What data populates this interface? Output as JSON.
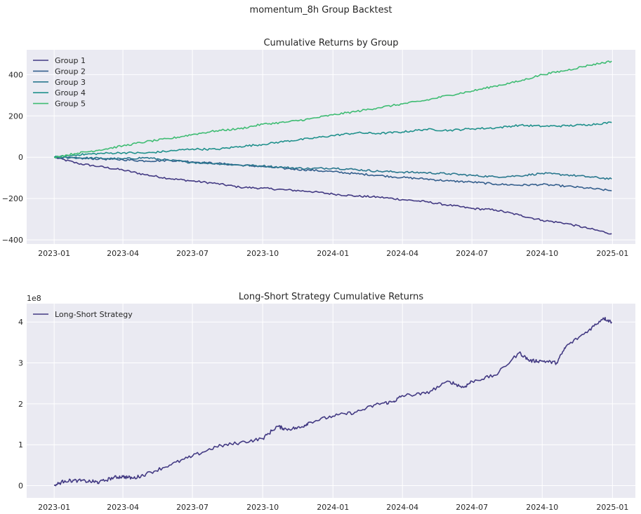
{
  "figure": {
    "suptitle": "momentum_8h Group Backtest",
    "style": {
      "face": "#eaeaf2",
      "grid": "#ffffff"
    }
  },
  "chart_data": [
    {
      "type": "line",
      "title": "Cumulative Returns by Group",
      "xlabel": "",
      "ylabel": "",
      "x_ticks": [
        "2023-01",
        "2023-04",
        "2023-07",
        "2023-10",
        "2024-01",
        "2024-04",
        "2024-07",
        "2024-10",
        "2025-01"
      ],
      "y_ticks": [
        "−400",
        "−200",
        "0",
        "200",
        "400"
      ],
      "y_tick_values": [
        -400,
        -200,
        0,
        200,
        400
      ],
      "xlim": [
        "2022-11-26",
        "2025-01-31"
      ],
      "ylim": [
        -420,
        520
      ],
      "grid": true,
      "legend": "top-left",
      "series": [
        {
          "name": "Group 1",
          "color": "#433a83",
          "x": [
            "2023-01-01",
            "2023-02-01",
            "2023-03-01",
            "2023-04-01",
            "2023-05-01",
            "2023-06-01",
            "2023-07-01",
            "2023-08-01",
            "2023-09-01",
            "2023-10-01",
            "2023-11-01",
            "2023-12-01",
            "2024-01-01",
            "2024-02-01",
            "2024-03-01",
            "2024-04-01",
            "2024-05-01",
            "2024-06-01",
            "2024-07-01",
            "2024-08-01",
            "2024-09-01",
            "2024-10-01",
            "2024-11-01",
            "2024-12-01",
            "2024-12-31"
          ],
          "y": [
            0,
            -30,
            -45,
            -62,
            -85,
            -103,
            -115,
            -127,
            -145,
            -150,
            -158,
            -165,
            -178,
            -188,
            -193,
            -205,
            -215,
            -232,
            -248,
            -255,
            -280,
            -305,
            -320,
            -345,
            -370
          ]
        },
        {
          "name": "Group 2",
          "color": "#355f8d",
          "x": [
            "2023-01-01",
            "2023-02-01",
            "2023-03-01",
            "2023-04-01",
            "2023-05-01",
            "2023-06-01",
            "2023-07-01",
            "2023-08-01",
            "2023-09-01",
            "2023-10-01",
            "2023-11-01",
            "2023-12-01",
            "2024-01-01",
            "2024-02-01",
            "2024-03-01",
            "2024-04-01",
            "2024-05-01",
            "2024-06-01",
            "2024-07-01",
            "2024-08-01",
            "2024-09-01",
            "2024-10-01",
            "2024-11-01",
            "2024-12-01",
            "2024-12-31"
          ],
          "y": [
            0,
            -5,
            -8,
            -12,
            -18,
            -15,
            -22,
            -30,
            -38,
            -45,
            -55,
            -62,
            -70,
            -80,
            -88,
            -98,
            -105,
            -115,
            -120,
            -130,
            -135,
            -132,
            -140,
            -150,
            -162
          ]
        },
        {
          "name": "Group 3",
          "color": "#2a788e",
          "x": [
            "2023-01-01",
            "2023-02-01",
            "2023-03-01",
            "2023-04-01",
            "2023-05-01",
            "2023-06-01",
            "2023-07-01",
            "2023-08-01",
            "2023-09-01",
            "2023-10-01",
            "2023-11-01",
            "2023-12-01",
            "2024-01-01",
            "2024-02-01",
            "2024-03-01",
            "2024-04-01",
            "2024-05-01",
            "2024-06-01",
            "2024-07-01",
            "2024-08-01",
            "2024-09-01",
            "2024-10-01",
            "2024-11-01",
            "2024-12-01",
            "2024-12-31"
          ],
          "y": [
            0,
            -3,
            -5,
            -8,
            -2,
            -15,
            -25,
            -30,
            -38,
            -42,
            -50,
            -55,
            -52,
            -60,
            -68,
            -72,
            -75,
            -80,
            -88,
            -95,
            -90,
            -78,
            -85,
            -95,
            -105
          ]
        },
        {
          "name": "Group 4",
          "color": "#21918c",
          "x": [
            "2023-01-01",
            "2023-02-01",
            "2023-03-01",
            "2023-04-01",
            "2023-05-01",
            "2023-06-01",
            "2023-07-01",
            "2023-08-01",
            "2023-09-01",
            "2023-10-01",
            "2023-11-01",
            "2023-12-01",
            "2024-01-01",
            "2024-02-01",
            "2024-03-01",
            "2024-04-01",
            "2024-05-01",
            "2024-06-01",
            "2024-07-01",
            "2024-08-01",
            "2024-09-01",
            "2024-10-01",
            "2024-11-01",
            "2024-12-01",
            "2024-12-31"
          ],
          "y": [
            0,
            12,
            18,
            22,
            20,
            30,
            40,
            38,
            52,
            62,
            78,
            90,
            105,
            118,
            115,
            122,
            135,
            130,
            138,
            142,
            155,
            150,
            152,
            158,
            168
          ]
        },
        {
          "name": "Group 5",
          "color": "#3fbc73",
          "x": [
            "2023-01-01",
            "2023-02-01",
            "2023-03-01",
            "2023-04-01",
            "2023-05-01",
            "2023-06-01",
            "2023-07-01",
            "2023-08-01",
            "2023-09-01",
            "2023-10-01",
            "2023-11-01",
            "2023-12-01",
            "2024-01-01",
            "2024-02-01",
            "2024-03-01",
            "2024-04-01",
            "2024-05-01",
            "2024-06-01",
            "2024-07-01",
            "2024-08-01",
            "2024-09-01",
            "2024-10-01",
            "2024-11-01",
            "2024-12-01",
            "2024-12-31"
          ],
          "y": [
            0,
            20,
            35,
            55,
            75,
            90,
            110,
            128,
            138,
            160,
            170,
            185,
            205,
            222,
            240,
            258,
            275,
            300,
            320,
            345,
            368,
            400,
            420,
            445,
            465
          ]
        }
      ]
    },
    {
      "type": "line",
      "title": "Long-Short Strategy Cumulative Returns",
      "xlabel": "",
      "ylabel": "",
      "y_offset_label": "1e8",
      "x_ticks": [
        "2023-01",
        "2023-04",
        "2023-07",
        "2023-10",
        "2024-01",
        "2024-04",
        "2024-07",
        "2024-10",
        "2025-01"
      ],
      "y_ticks": [
        "0",
        "1",
        "2",
        "3",
        "4"
      ],
      "y_tick_values": [
        0,
        1,
        2,
        3,
        4
      ],
      "xlim": [
        "2022-11-26",
        "2025-01-31"
      ],
      "ylim": [
        -0.3,
        4.45
      ],
      "grid": true,
      "legend": "top-left",
      "series": [
        {
          "name": "Long-Short Strategy",
          "color": "#433a83",
          "x": [
            "2023-01-01",
            "2023-01-15",
            "2023-02-01",
            "2023-02-20",
            "2023-03-01",
            "2023-03-20",
            "2023-04-01",
            "2023-04-15",
            "2023-05-01",
            "2023-06-01",
            "2023-07-01",
            "2023-08-01",
            "2023-09-01",
            "2023-10-01",
            "2023-10-20",
            "2023-11-01",
            "2023-11-20",
            "2023-12-01",
            "2024-01-01",
            "2024-02-01",
            "2024-03-01",
            "2024-03-20",
            "2024-04-01",
            "2024-05-01",
            "2024-06-01",
            "2024-06-20",
            "2024-07-01",
            "2024-08-01",
            "2024-09-01",
            "2024-09-15",
            "2024-10-01",
            "2024-10-20",
            "2024-11-01",
            "2024-12-01",
            "2024-12-20",
            "2024-12-31"
          ],
          "y": [
            0,
            0.12,
            0.12,
            0.1,
            0.08,
            0.2,
            0.22,
            0.18,
            0.28,
            0.5,
            0.72,
            0.95,
            1.05,
            1.15,
            1.45,
            1.38,
            1.42,
            1.55,
            1.7,
            1.8,
            2.0,
            2.05,
            2.2,
            2.25,
            2.55,
            2.4,
            2.55,
            2.7,
            3.25,
            3.05,
            3.05,
            3.0,
            3.4,
            3.8,
            4.1,
            4.0
          ]
        }
      ]
    }
  ]
}
